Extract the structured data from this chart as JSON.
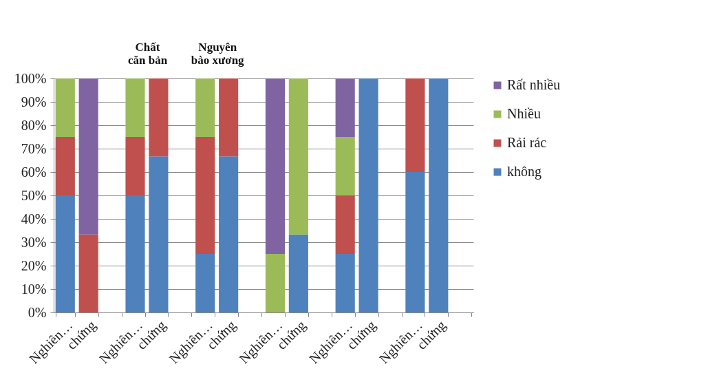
{
  "chart_data": {
    "type": "bar",
    "stacked": true,
    "categories": [
      "Nghiên…",
      "chứng",
      null,
      "Nghiên…",
      "chứng",
      null,
      "Nghiên…",
      "chứng",
      null,
      "Nghiên…",
      "chứng",
      null,
      "Nghiên…",
      "chứng",
      null,
      "Nghiên…",
      "chứng",
      null
    ],
    "series": [
      {
        "name": "không",
        "color": "#4f81bd",
        "values": [
          50,
          0,
          null,
          50,
          66.7,
          null,
          25,
          66.7,
          null,
          0,
          33.3,
          null,
          25,
          100,
          null,
          60,
          100,
          null
        ]
      },
      {
        "name": "Rải rác",
        "color": "#c0504d",
        "values": [
          25,
          33.3,
          null,
          25,
          33.3,
          null,
          50,
          33.3,
          null,
          0,
          0,
          null,
          25,
          0,
          null,
          40,
          0,
          null
        ]
      },
      {
        "name": "Nhiều",
        "color": "#9bbb59",
        "values": [
          25,
          0,
          null,
          25,
          0,
          null,
          25,
          0,
          null,
          25,
          66.7,
          null,
          25,
          0,
          null,
          0,
          0,
          null
        ]
      },
      {
        "name": "Rất nhiều",
        "color": "#8064a2",
        "values": [
          0,
          66.7,
          null,
          0,
          0,
          null,
          0,
          0,
          null,
          75,
          0,
          null,
          25,
          0,
          null,
          0,
          0,
          null
        ]
      }
    ],
    "ylim": [
      0,
      100
    ],
    "yticks": [
      {
        "value": 0,
        "label": "0%"
      },
      {
        "value": 10,
        "label": "10%"
      },
      {
        "value": 20,
        "label": "20%"
      },
      {
        "value": 30,
        "label": "30%"
      },
      {
        "value": 40,
        "label": "40%"
      },
      {
        "value": 50,
        "label": "50%"
      },
      {
        "value": 60,
        "label": "60%"
      },
      {
        "value": 70,
        "label": "70%"
      },
      {
        "value": 80,
        "label": "80%"
      },
      {
        "value": 90,
        "label": "90%"
      },
      {
        "value": 100,
        "label": "100%"
      }
    ],
    "grid": "y",
    "legend": "right",
    "annotations": [
      "Chất căn bản",
      "Nguyên bào xương"
    ]
  }
}
